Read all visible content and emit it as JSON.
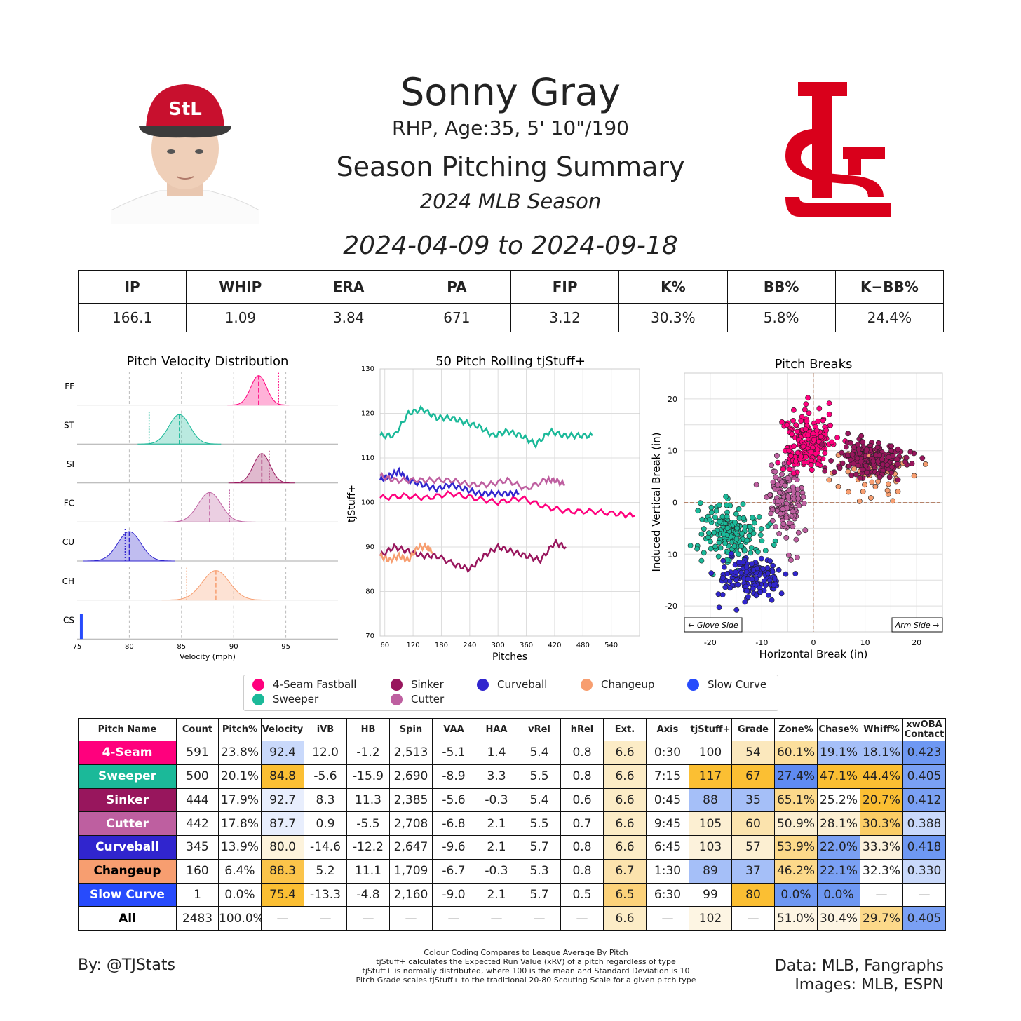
{
  "header": {
    "name": "Sonny Gray",
    "info": "RHP, Age:35, 5' 10\"/190",
    "summary_title": "Season Pitching Summary",
    "season": "2024 MLB Season",
    "date_range": "2024-04-09 to 2024-09-18"
  },
  "team_logo": {
    "text": "STL",
    "color": "#d9001b"
  },
  "headshot": {
    "icon": "player-headshot",
    "cap_color": "#c8102e"
  },
  "season_stats": {
    "headers": [
      "IP",
      "WHIP",
      "ERA",
      "PA",
      "FIP",
      "K%",
      "BB%",
      "K−BB%"
    ],
    "values": [
      "166.1",
      "1.09",
      "3.84",
      "671",
      "3.12",
      "30.3%",
      "5.8%",
      "24.4%"
    ]
  },
  "colors": {
    "FF": "#ff007d",
    "ST": "#1bb999",
    "SI": "#98165d",
    "FC": "#be5fa0",
    "CU": "#3025ce",
    "CH": "#f79e70",
    "CS": "#274bfc"
  },
  "chart_data": [
    {
      "type": "area",
      "title": "Pitch Velocity Distribution",
      "xlabel": "Velocity (mph)",
      "xlim": [
        75,
        100
      ],
      "xticks": [
        75,
        80,
        85,
        90,
        95
      ],
      "series": [
        {
          "name": "FF",
          "mean": 92.4,
          "sd": 0.75,
          "league_avg": 94.3
        },
        {
          "name": "ST",
          "mean": 84.8,
          "sd": 1.0,
          "league_avg": 81.9
        },
        {
          "name": "SI",
          "mean": 92.7,
          "sd": 0.8,
          "league_avg": 93.4
        },
        {
          "name": "FC",
          "mean": 87.7,
          "sd": 1.1,
          "league_avg": 89.6
        },
        {
          "name": "CU",
          "mean": 80.0,
          "sd": 1.1,
          "league_avg": 79.6
        },
        {
          "name": "CH",
          "mean": 88.3,
          "sd": 1.3,
          "league_avg": 85.5
        },
        {
          "name": "CS",
          "mean": 75.4,
          "sd": 0.0,
          "league_avg": null
        }
      ]
    },
    {
      "type": "line",
      "title": "50 Pitch Rolling tjStuff+",
      "xlabel": "Pitches",
      "ylabel": "tjStuff+",
      "xlim": [
        50,
        600
      ],
      "ylim": [
        70,
        130
      ],
      "xticks": [
        60,
        120,
        180,
        240,
        300,
        360,
        420,
        480,
        540
      ],
      "yticks": [
        70,
        80,
        90,
        100,
        110,
        120,
        130
      ],
      "series": [
        {
          "name": "ST",
          "x": [
            50,
            80,
            110,
            140,
            170,
            200,
            230,
            260,
            290,
            320,
            350,
            380,
            410,
            440,
            470,
            500
          ],
          "y": [
            115,
            115,
            120,
            121,
            119,
            119,
            118,
            117,
            115,
            116,
            115,
            113,
            116,
            115,
            115,
            115
          ]
        },
        {
          "name": "FF",
          "x": [
            50,
            100,
            150,
            200,
            250,
            300,
            350,
            400,
            450,
            500,
            550,
            590
          ],
          "y": [
            101,
            101.5,
            101,
            102,
            101,
            100,
            101,
            99,
            98,
            98,
            97.5,
            97
          ]
        },
        {
          "name": "CU",
          "x": [
            50,
            70,
            90,
            110,
            140,
            170,
            200,
            230,
            260,
            290,
            320,
            345
          ],
          "y": [
            105,
            106,
            107,
            105,
            104,
            103,
            104,
            103,
            102,
            102,
            102,
            102
          ]
        },
        {
          "name": "FC",
          "x": [
            50,
            80,
            120,
            160,
            200,
            240,
            280,
            320,
            360,
            400,
            420,
            442
          ],
          "y": [
            106,
            105,
            105,
            105,
            105,
            104,
            104,
            105,
            103,
            105,
            105,
            104
          ]
        },
        {
          "name": "SI",
          "x": [
            50,
            80,
            110,
            140,
            170,
            210,
            240,
            270,
            300,
            330,
            360,
            390,
            420,
            444
          ],
          "y": [
            88,
            90,
            89,
            88,
            88,
            86,
            85,
            88,
            90,
            89,
            88,
            87,
            91,
            90
          ]
        },
        {
          "name": "CH",
          "x": [
            50,
            70,
            90,
            110,
            130,
            150,
            160
          ],
          "y": [
            88,
            87,
            88,
            87,
            90,
            90,
            89
          ]
        }
      ]
    },
    {
      "type": "scatter",
      "title": "Pitch Breaks",
      "xlabel": "Horizontal Break (in)",
      "ylabel": "Induced Vertical Break (in)",
      "xlim": [
        -25,
        25
      ],
      "ylim": [
        -25,
        25
      ],
      "xticks": [
        -20,
        -10,
        0,
        10,
        20
      ],
      "yticks": [
        -20,
        -10,
        0,
        10,
        20
      ],
      "annotations": [
        "← Glove Side",
        "Arm Side →"
      ],
      "clusters": [
        {
          "name": "ST",
          "hb": -15.9,
          "ivb": -5.6,
          "sd_hb": 3.0,
          "sd_ivb": 3.0,
          "n": 170
        },
        {
          "name": "CU",
          "hb": -12.2,
          "ivb": -14.6,
          "sd_hb": 3.2,
          "sd_ivb": 2.0,
          "n": 150
        },
        {
          "name": "FC",
          "hb": -5.5,
          "ivb": 0.9,
          "sd_hb": 1.6,
          "sd_ivb": 3.6,
          "n": 150
        },
        {
          "name": "FF",
          "hb": -1.2,
          "ivb": 12.0,
          "sd_hb": 2.3,
          "sd_ivb": 2.8,
          "n": 200
        },
        {
          "name": "CH",
          "hb": 11.1,
          "ivb": 5.2,
          "sd_hb": 3.6,
          "sd_ivb": 2.6,
          "n": 60
        },
        {
          "name": "SI",
          "hb": 11.3,
          "ivb": 8.3,
          "sd_hb": 3.4,
          "sd_ivb": 2.0,
          "n": 180
        }
      ]
    }
  ],
  "legend": [
    {
      "label": "4-Seam Fastball",
      "code": "FF"
    },
    {
      "label": "Sweeper",
      "code": "ST"
    },
    {
      "label": "Sinker",
      "code": "SI"
    },
    {
      "label": "Cutter",
      "code": "FC"
    },
    {
      "label": "Curveball",
      "code": "CU"
    },
    {
      "label": "Changeup",
      "code": "CH"
    },
    {
      "label": "Slow Curve",
      "code": "CS"
    }
  ],
  "pitch_table": {
    "headers": [
      "Pitch Name",
      "Count",
      "Pitch%",
      "Velocity",
      "iVB",
      "HB",
      "Spin",
      "VAA",
      "HAA",
      "vRel",
      "hRel",
      "Ext.",
      "Axis",
      "tjStuff+",
      "Grade",
      "Zone%",
      "Chase%",
      "Whiff%",
      "xwOBA Contact"
    ],
    "rows": [
      {
        "name": "4-Seam",
        "code": "FF",
        "cells": [
          "591",
          "23.8%",
          "92.4",
          "12.0",
          "-1.2",
          "2,513",
          "-5.1",
          "1.4",
          "5.4",
          "0.8",
          "6.6",
          "0:30",
          "100",
          "54",
          "60.1%",
          "19.1%",
          "18.1%",
          "0.423"
        ],
        "shades": [
          "",
          "",
          "#c9d9fb",
          "",
          "",
          "",
          "",
          "",
          "",
          "",
          "#fcecc6",
          "",
          "#ffffff",
          "#fbe8bd",
          "#fcdf9c",
          "#a5bff8",
          "#a5bff8",
          "#6e98f3"
        ]
      },
      {
        "name": "Sweeper",
        "code": "ST",
        "cells": [
          "500",
          "20.1%",
          "84.8",
          "-5.6",
          "-15.9",
          "2,690",
          "-8.9",
          "3.3",
          "5.5",
          "0.8",
          "6.6",
          "7:15",
          "117",
          "67",
          "27.4%",
          "47.1%",
          "44.4%",
          "0.405"
        ],
        "shades": [
          "",
          "",
          "#fbbf33",
          "",
          "",
          "",
          "",
          "",
          "",
          "",
          "#fcecc6",
          "",
          "#fbbf33",
          "#fbbf33",
          "#5f8bf2",
          "#fbbf33",
          "#fbbf33",
          "#7aa0f4"
        ]
      },
      {
        "name": "Sinker",
        "code": "SI",
        "cells": [
          "444",
          "17.9%",
          "92.7",
          "8.3",
          "11.3",
          "2,385",
          "-5.6",
          "-0.3",
          "5.4",
          "0.6",
          "6.6",
          "0:45",
          "88",
          "35",
          "65.1%",
          "25.2%",
          "20.7%",
          "0.412"
        ],
        "shades": [
          "",
          "",
          "#e8eefd",
          "",
          "",
          "",
          "",
          "",
          "",
          "",
          "#fcecc6",
          "",
          "#a5bff8",
          "#a5bff8",
          "#fcd98a",
          "#ffffff",
          "#fbbf33",
          "#7aa0f4"
        ]
      },
      {
        "name": "Cutter",
        "code": "FC",
        "cells": [
          "442",
          "17.8%",
          "87.7",
          "0.9",
          "-5.5",
          "2,708",
          "-6.8",
          "2.1",
          "5.5",
          "0.7",
          "6.6",
          "9:45",
          "105",
          "60",
          "50.9%",
          "28.1%",
          "30.3%",
          "0.388"
        ],
        "shades": [
          "",
          "",
          "#e8eefd",
          "",
          "",
          "",
          "",
          "",
          "",
          "",
          "#fcecc6",
          "",
          "#fcefd2",
          "#fbe3ad",
          "#fcefd2",
          "#fcefd2",
          "#fbcd66",
          "#c9d9fb"
        ]
      },
      {
        "name": "Curveball",
        "code": "CU",
        "cells": [
          "345",
          "13.9%",
          "80.0",
          "-14.6",
          "-12.2",
          "2,647",
          "-9.6",
          "2.1",
          "5.7",
          "0.8",
          "6.6",
          "6:45",
          "103",
          "57",
          "53.9%",
          "22.0%",
          "33.3%",
          "0.418"
        ],
        "shades": [
          "",
          "",
          "#fdf3dc",
          "",
          "",
          "",
          "",
          "",
          "",
          "",
          "#fcecc6",
          "",
          "#fcf2dc",
          "#fcefd2",
          "#fcd98a",
          "#7aa0f4",
          "#fcf2dc",
          "#6e98f3"
        ]
      },
      {
        "name": "Changeup",
        "code": "CH",
        "cells": [
          "160",
          "6.4%",
          "88.3",
          "5.2",
          "11.1",
          "1,709",
          "-6.7",
          "-0.3",
          "5.3",
          "0.8",
          "6.7",
          "1:30",
          "89",
          "37",
          "46.2%",
          "22.1%",
          "32.3%",
          "0.330"
        ],
        "shades": [
          "",
          "",
          "#fbc44a",
          "",
          "",
          "",
          "",
          "",
          "",
          "",
          "#fce3ad",
          "",
          "#a5bff8",
          "#a5bff8",
          "#fcd98a",
          "#7aa0f4",
          "#ffffff",
          "#c9d9fb"
        ]
      },
      {
        "name": "Slow Curve",
        "code": "CS",
        "cells": [
          "1",
          "0.0%",
          "75.4",
          "-13.3",
          "-4.8",
          "2,160",
          "-9.0",
          "2.1",
          "5.7",
          "0.5",
          "6.5",
          "6:30",
          "99",
          "80",
          "0.0%",
          "0.0%",
          "—",
          "—"
        ],
        "shades": [
          "",
          "",
          "#fbbf33",
          "",
          "",
          "",
          "",
          "",
          "",
          "",
          "#fcd27a",
          "",
          "#ffffff",
          "#fbbf33",
          "#6e98f3",
          "#6e98f3",
          "",
          ""
        ]
      },
      {
        "name": "All",
        "code": "",
        "cells": [
          "2483",
          "100.0%",
          "—",
          "—",
          "—",
          "—",
          "—",
          "—",
          "—",
          "—",
          "6.6",
          "—",
          "102",
          "—",
          "51.0%",
          "30.4%",
          "29.7%",
          "0.405"
        ],
        "shades": [
          "",
          "",
          "",
          "",
          "",
          "",
          "",
          "",
          "",
          "",
          "#fcecc6",
          "",
          "#fdf5e3",
          "",
          "#fdf5e3",
          "#fdf5e3",
          "#fcd98a",
          "#7aa0f4"
        ]
      }
    ]
  },
  "footer": {
    "byline": "By: @TJStats",
    "notes": [
      "Colour Coding Compares to League Average By Pitch",
      "tjStuff+ calculates the Expected Run Value (xRV) of a pitch regardless of type",
      "tjStuff+ is normally distributed, where 100 is the mean and Standard Deviation is 10",
      "Pitch Grade scales tjStuff+ to the traditional 20-80 Scouting Scale for a given pitch type"
    ],
    "data_credit": "Data: MLB, Fangraphs",
    "image_credit": "Images: MLB, ESPN"
  }
}
